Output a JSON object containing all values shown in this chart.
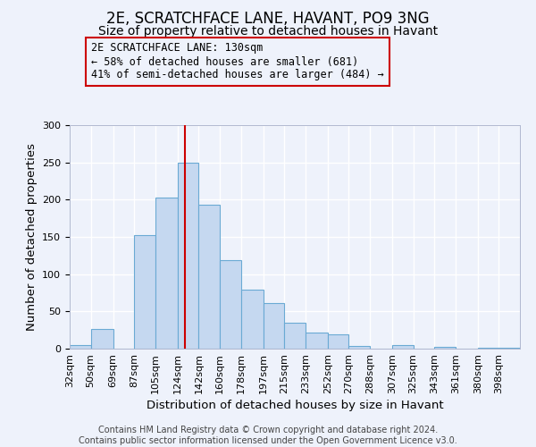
{
  "title": "2E, SCRATCHFACE LANE, HAVANT, PO9 3NG",
  "subtitle": "Size of property relative to detached houses in Havant",
  "xlabel": "Distribution of detached houses by size in Havant",
  "ylabel": "Number of detached properties",
  "bin_labels": [
    "32sqm",
    "50sqm",
    "69sqm",
    "87sqm",
    "105sqm",
    "124sqm",
    "142sqm",
    "160sqm",
    "178sqm",
    "197sqm",
    "215sqm",
    "233sqm",
    "252sqm",
    "270sqm",
    "288sqm",
    "307sqm",
    "325sqm",
    "343sqm",
    "361sqm",
    "380sqm",
    "398sqm"
  ],
  "bin_edges": [
    32,
    50,
    69,
    87,
    105,
    124,
    142,
    160,
    178,
    197,
    215,
    233,
    252,
    270,
    288,
    307,
    325,
    343,
    361,
    380,
    398
  ],
  "bar_heights": [
    5,
    27,
    0,
    153,
    203,
    250,
    193,
    119,
    79,
    61,
    35,
    22,
    19,
    4,
    0,
    5,
    0,
    3,
    0,
    1,
    1
  ],
  "bar_color": "#c5d8f0",
  "bar_edge_color": "#6aaad4",
  "vline_x": 130,
  "vline_color": "#cc0000",
  "annotation_line1": "2E SCRATCHFACE LANE: 130sqm",
  "annotation_line2": "← 58% of detached houses are smaller (681)",
  "annotation_line3": "41% of semi-detached houses are larger (484) →",
  "annotation_box_color": "#cc0000",
  "ylim": [
    0,
    300
  ],
  "yticks": [
    0,
    50,
    100,
    150,
    200,
    250,
    300
  ],
  "footer_line1": "Contains HM Land Registry data © Crown copyright and database right 2024.",
  "footer_line2": "Contains public sector information licensed under the Open Government Licence v3.0.",
  "background_color": "#eef2fb",
  "grid_color": "#ffffff",
  "title_fontsize": 12,
  "subtitle_fontsize": 10,
  "axis_label_fontsize": 9.5,
  "tick_fontsize": 8,
  "annotation_fontsize": 8.5,
  "footer_fontsize": 7
}
